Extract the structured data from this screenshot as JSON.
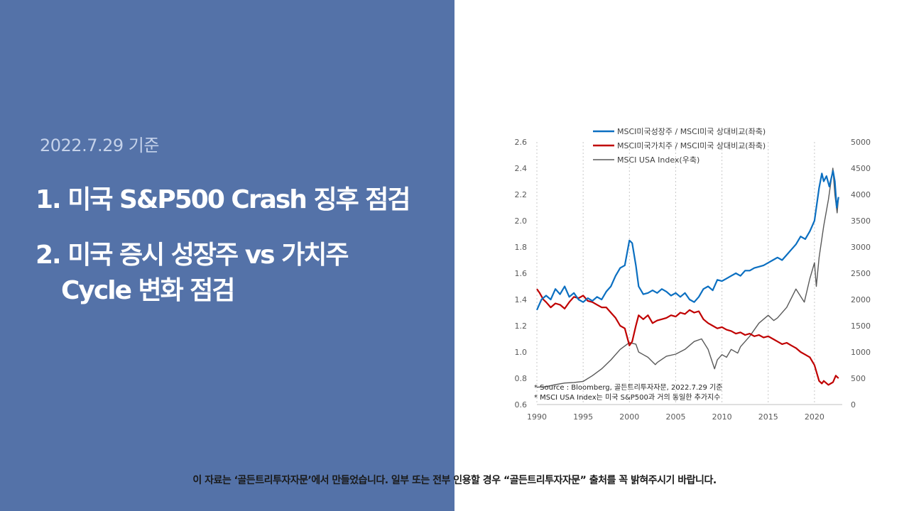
{
  "slide": {
    "date_label": "2022.7.29 기준",
    "title_1": "1. 미국 S&P500 Crash 징후 점검",
    "title_2_line1": "2. 미국 증시 성장주 vs 가치주",
    "title_2_line2": "Cycle 변화 점검",
    "disclaimer": "이 자료는 ‘골든트리투자자문’에서 만들었습니다. 일부 또는 전부 인용할 경우 “골든트리투자자문” 출처를 꼭 밝혀주시기 바랍니다.",
    "colors": {
      "panel": "#5472a8",
      "growth": "#0b6fc1",
      "value": "#c00000",
      "index": "#595959"
    }
  },
  "chart_data": {
    "type": "line",
    "legend": [
      "MSCI미국성장주 / MSCI미국 상대비교(좌축)",
      "MSCI미국가치주 / MSCI미국 상대비교(좌축)",
      "MSCI USA Index(우축)"
    ],
    "legend_position": "top",
    "notes": [
      "* Source : Bloomberg, 골든트리투자자문, 2022.7.29 기준",
      "* MSCI USA Index는 미국 S&P500과 거의 동일한 추가지수"
    ],
    "x_ticks": [
      "1990",
      "1995",
      "2000",
      "2005",
      "2010",
      "2015",
      "2020"
    ],
    "xlim": [
      1990,
      2023
    ],
    "y_left_ticks": [
      "2.6",
      "2.4",
      "2.2",
      "2.0",
      "1.8",
      "1.6",
      "1.4",
      "1.2",
      "1.0",
      "0.8",
      "0.6"
    ],
    "y_left_lim": [
      0.6,
      2.6
    ],
    "y_right_ticks": [
      "5000",
      "4500",
      "4000",
      "3500",
      "3000",
      "2500",
      "2000",
      "1500",
      "1000",
      "500",
      "0"
    ],
    "y_right_lim": [
      0,
      5000
    ],
    "vertical_gridlines": true,
    "series": [
      {
        "name": "MSCI미국성장주 / MSCI미국 상대비교(좌축)",
        "axis": "left",
        "color": "#0b6fc1",
        "points": [
          [
            1990.0,
            1.32
          ],
          [
            1990.5,
            1.4
          ],
          [
            1991.0,
            1.43
          ],
          [
            1991.5,
            1.4
          ],
          [
            1992.0,
            1.48
          ],
          [
            1992.5,
            1.44
          ],
          [
            1993.0,
            1.5
          ],
          [
            1993.5,
            1.42
          ],
          [
            1994.0,
            1.45
          ],
          [
            1994.5,
            1.4
          ],
          [
            1995.0,
            1.38
          ],
          [
            1995.5,
            1.41
          ],
          [
            1996.0,
            1.39
          ],
          [
            1996.5,
            1.42
          ],
          [
            1997.0,
            1.4
          ],
          [
            1997.5,
            1.46
          ],
          [
            1998.0,
            1.5
          ],
          [
            1998.5,
            1.58
          ],
          [
            1999.0,
            1.64
          ],
          [
            1999.5,
            1.66
          ],
          [
            2000.0,
            1.85
          ],
          [
            2000.3,
            1.83
          ],
          [
            2000.7,
            1.66
          ],
          [
            2001.0,
            1.5
          ],
          [
            2001.5,
            1.44
          ],
          [
            2002.0,
            1.45
          ],
          [
            2002.5,
            1.47
          ],
          [
            2003.0,
            1.45
          ],
          [
            2003.5,
            1.48
          ],
          [
            2004.0,
            1.46
          ],
          [
            2004.5,
            1.43
          ],
          [
            2005.0,
            1.45
          ],
          [
            2005.5,
            1.42
          ],
          [
            2006.0,
            1.45
          ],
          [
            2006.5,
            1.4
          ],
          [
            2007.0,
            1.38
          ],
          [
            2007.5,
            1.42
          ],
          [
            2008.0,
            1.48
          ],
          [
            2008.5,
            1.5
          ],
          [
            2009.0,
            1.47
          ],
          [
            2009.5,
            1.55
          ],
          [
            2010.0,
            1.54
          ],
          [
            2010.5,
            1.56
          ],
          [
            2011.0,
            1.58
          ],
          [
            2011.5,
            1.6
          ],
          [
            2012.0,
            1.58
          ],
          [
            2012.5,
            1.62
          ],
          [
            2013.0,
            1.62
          ],
          [
            2013.5,
            1.64
          ],
          [
            2014.0,
            1.65
          ],
          [
            2014.5,
            1.66
          ],
          [
            2015.0,
            1.68
          ],
          [
            2015.5,
            1.7
          ],
          [
            2016.0,
            1.72
          ],
          [
            2016.5,
            1.7
          ],
          [
            2017.0,
            1.74
          ],
          [
            2017.5,
            1.78
          ],
          [
            2018.0,
            1.82
          ],
          [
            2018.5,
            1.88
          ],
          [
            2019.0,
            1.86
          ],
          [
            2019.5,
            1.92
          ],
          [
            2020.0,
            2.0
          ],
          [
            2020.5,
            2.25
          ],
          [
            2020.8,
            2.36
          ],
          [
            2021.0,
            2.3
          ],
          [
            2021.3,
            2.34
          ],
          [
            2021.6,
            2.26
          ],
          [
            2022.0,
            2.38
          ],
          [
            2022.2,
            2.3
          ],
          [
            2022.4,
            2.1
          ],
          [
            2022.6,
            2.18
          ]
        ]
      },
      {
        "name": "MSCI미국가치주 / MSCI미국 상대비교(좌축)",
        "axis": "left",
        "color": "#c00000",
        "points": [
          [
            1990.0,
            1.48
          ],
          [
            1990.3,
            1.45
          ],
          [
            1990.7,
            1.4
          ],
          [
            1991.0,
            1.38
          ],
          [
            1991.5,
            1.34
          ],
          [
            1992.0,
            1.37
          ],
          [
            1992.5,
            1.36
          ],
          [
            1993.0,
            1.33
          ],
          [
            1993.5,
            1.38
          ],
          [
            1994.0,
            1.42
          ],
          [
            1994.5,
            1.41
          ],
          [
            1995.0,
            1.43
          ],
          [
            1995.5,
            1.39
          ],
          [
            1996.0,
            1.38
          ],
          [
            1996.5,
            1.36
          ],
          [
            1997.0,
            1.34
          ],
          [
            1997.5,
            1.34
          ],
          [
            1998.0,
            1.3
          ],
          [
            1998.5,
            1.26
          ],
          [
            1999.0,
            1.2
          ],
          [
            1999.5,
            1.18
          ],
          [
            2000.0,
            1.05
          ],
          [
            2000.3,
            1.08
          ],
          [
            2000.7,
            1.2
          ],
          [
            2001.0,
            1.28
          ],
          [
            2001.5,
            1.25
          ],
          [
            2002.0,
            1.28
          ],
          [
            2002.5,
            1.22
          ],
          [
            2003.0,
            1.24
          ],
          [
            2003.5,
            1.25
          ],
          [
            2004.0,
            1.26
          ],
          [
            2004.5,
            1.28
          ],
          [
            2005.0,
            1.27
          ],
          [
            2005.5,
            1.3
          ],
          [
            2006.0,
            1.29
          ],
          [
            2006.5,
            1.32
          ],
          [
            2007.0,
            1.3
          ],
          [
            2007.5,
            1.31
          ],
          [
            2008.0,
            1.25
          ],
          [
            2008.5,
            1.22
          ],
          [
            2009.0,
            1.2
          ],
          [
            2009.5,
            1.18
          ],
          [
            2010.0,
            1.19
          ],
          [
            2010.5,
            1.17
          ],
          [
            2011.0,
            1.16
          ],
          [
            2011.5,
            1.14
          ],
          [
            2012.0,
            1.15
          ],
          [
            2012.5,
            1.13
          ],
          [
            2013.0,
            1.14
          ],
          [
            2013.5,
            1.12
          ],
          [
            2014.0,
            1.13
          ],
          [
            2014.5,
            1.11
          ],
          [
            2015.0,
            1.12
          ],
          [
            2015.5,
            1.1
          ],
          [
            2016.0,
            1.08
          ],
          [
            2016.5,
            1.06
          ],
          [
            2017.0,
            1.07
          ],
          [
            2017.5,
            1.05
          ],
          [
            2018.0,
            1.03
          ],
          [
            2018.5,
            1.0
          ],
          [
            2019.0,
            0.98
          ],
          [
            2019.5,
            0.96
          ],
          [
            2020.0,
            0.9
          ],
          [
            2020.5,
            0.78
          ],
          [
            2020.8,
            0.76
          ],
          [
            2021.0,
            0.78
          ],
          [
            2021.5,
            0.75
          ],
          [
            2022.0,
            0.77
          ],
          [
            2022.3,
            0.82
          ],
          [
            2022.6,
            0.8
          ]
        ]
      },
      {
        "name": "MSCI USA Index(우축)",
        "axis": "right",
        "color": "#595959",
        "points": [
          [
            1990.0,
            330
          ],
          [
            1991.0,
            340
          ],
          [
            1992.0,
            380
          ],
          [
            1993.0,
            410
          ],
          [
            1994.0,
            420
          ],
          [
            1995.0,
            440
          ],
          [
            1996.0,
            550
          ],
          [
            1997.0,
            680
          ],
          [
            1998.0,
            850
          ],
          [
            1999.0,
            1050
          ],
          [
            2000.0,
            1180
          ],
          [
            2000.7,
            1150
          ],
          [
            2001.0,
            1000
          ],
          [
            2001.5,
            950
          ],
          [
            2002.0,
            900
          ],
          [
            2002.8,
            760
          ],
          [
            2003.0,
            800
          ],
          [
            2004.0,
            920
          ],
          [
            2005.0,
            960
          ],
          [
            2006.0,
            1050
          ],
          [
            2007.0,
            1200
          ],
          [
            2007.8,
            1250
          ],
          [
            2008.5,
            1050
          ],
          [
            2009.2,
            680
          ],
          [
            2009.5,
            850
          ],
          [
            2010.0,
            950
          ],
          [
            2010.5,
            900
          ],
          [
            2011.0,
            1050
          ],
          [
            2011.7,
            980
          ],
          [
            2012.0,
            1100
          ],
          [
            2013.0,
            1300
          ],
          [
            2014.0,
            1550
          ],
          [
            2015.0,
            1700
          ],
          [
            2015.6,
            1600
          ],
          [
            2016.0,
            1650
          ],
          [
            2017.0,
            1850
          ],
          [
            2018.0,
            2200
          ],
          [
            2018.9,
            1950
          ],
          [
            2019.5,
            2400
          ],
          [
            2020.0,
            2700
          ],
          [
            2020.2,
            2250
          ],
          [
            2020.5,
            2800
          ],
          [
            2021.0,
            3400
          ],
          [
            2021.5,
            3900
          ],
          [
            2021.99,
            4500
          ],
          [
            2022.2,
            4000
          ],
          [
            2022.45,
            3650
          ],
          [
            2022.6,
            3950
          ]
        ]
      }
    ]
  }
}
